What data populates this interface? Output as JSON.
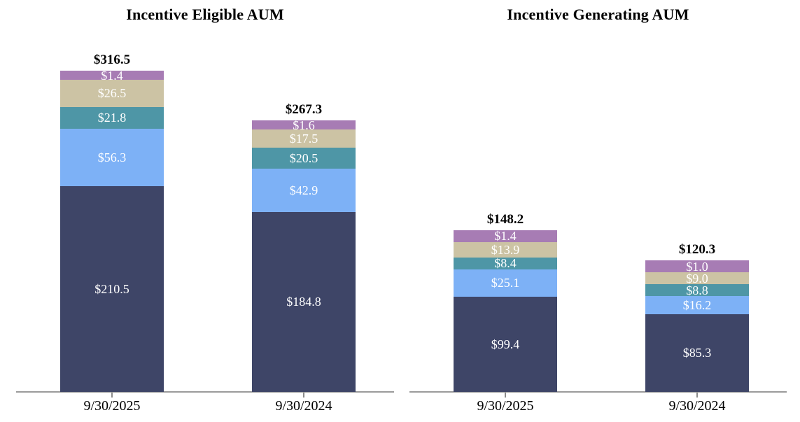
{
  "chart_data": [
    {
      "type": "bar",
      "stacked": true,
      "title": "Incentive Eligible AUM",
      "categories": [
        "9/30/2025",
        "9/30/2024"
      ],
      "series": [
        {
          "name": "navy-segment",
          "color": "#3E4567",
          "values": [
            210.5,
            184.8
          ]
        },
        {
          "name": "light-blue-segment",
          "color": "#7DB1F6",
          "values": [
            56.3,
            42.9
          ]
        },
        {
          "name": "teal-segment",
          "color": "#4E96A6",
          "values": [
            21.8,
            20.5
          ]
        },
        {
          "name": "tan-segment",
          "color": "#CCC3A4",
          "values": [
            26.5,
            17.5
          ]
        },
        {
          "name": "purple-segment",
          "color": "#A77CB4",
          "values": [
            1.4,
            1.6
          ]
        }
      ],
      "totals": [
        316.5,
        267.3
      ],
      "total_labels": [
        "$316.5",
        "$267.3"
      ],
      "segment_labels": [
        [
          "$210.5",
          "$56.3",
          "$21.8",
          "$26.5",
          "$1.4"
        ],
        [
          "$184.8",
          "$42.9",
          "$20.5",
          "$17.5",
          "$1.6"
        ]
      ],
      "value_prefix": "$",
      "segment_label_color": "#FFFFFF",
      "total_label_color": "#000000",
      "axis_color": "#9B9B9B",
      "tick_color": "#8A8A8A",
      "legend": "none",
      "grid": false,
      "xlabel": "",
      "ylabel": ""
    },
    {
      "type": "bar",
      "stacked": true,
      "title": "Incentive Generating AUM",
      "categories": [
        "9/30/2025",
        "9/30/2024"
      ],
      "series": [
        {
          "name": "navy-segment",
          "color": "#3E4567",
          "values": [
            99.4,
            85.3
          ]
        },
        {
          "name": "light-blue-segment",
          "color": "#7DB1F6",
          "values": [
            25.1,
            16.2
          ]
        },
        {
          "name": "teal-segment",
          "color": "#4E96A6",
          "values": [
            8.4,
            8.8
          ]
        },
        {
          "name": "tan-segment",
          "color": "#CCC3A4",
          "values": [
            13.9,
            9.0
          ]
        },
        {
          "name": "purple-segment",
          "color": "#A77CB4",
          "values": [
            1.4,
            1.0
          ]
        }
      ],
      "totals": [
        148.2,
        120.3
      ],
      "total_labels": [
        "$148.2",
        "$120.3"
      ],
      "segment_labels": [
        [
          "$99.4",
          "$25.1",
          "$8.4",
          "$13.9",
          "$1.4"
        ],
        [
          "$85.3",
          "$16.2",
          "$8.8",
          "$9.0",
          "$1.0"
        ]
      ],
      "value_prefix": "$",
      "segment_label_color": "#FFFFFF",
      "total_label_color": "#000000",
      "axis_color": "#9B9B9B",
      "tick_color": "#8A8A8A",
      "legend": "none",
      "grid": false,
      "xlabel": "",
      "ylabel": ""
    }
  ]
}
